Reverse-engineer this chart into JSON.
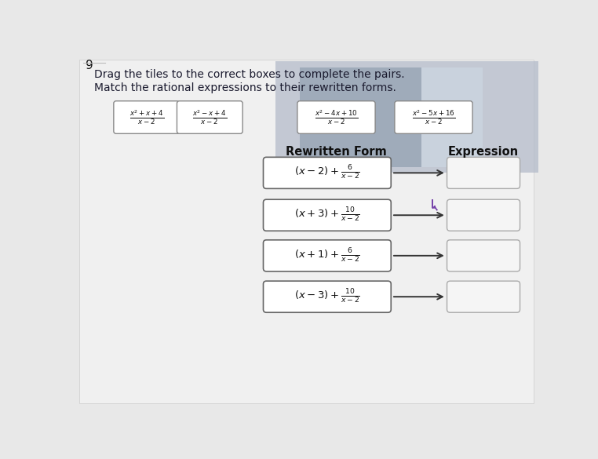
{
  "question_number": "9",
  "instruction1": "Drag the tiles to the correct boxes to complete the pairs.",
  "instruction2": "Match the rational expressions to their rewritten forms.",
  "tile_labels_latex": [
    "$\\frac{x^2+x+4}{x-2}$",
    "$\\frac{x^2-x+4}{x-2}$",
    "$\\frac{x^2-4x+10}{x-2}$",
    "$\\frac{x^2-5x+16}{x-2}$"
  ],
  "rewritten_forms_latex": [
    "$(x-2)+\\frac{6}{x-2}$",
    "$(x+3)+\\frac{10}{x-2}$",
    "$(x+1)+\\frac{6}{x-2}$",
    "$(x-3)+\\frac{10}{x-2}$"
  ],
  "col_label_left": "Rewritten Form",
  "col_label_right": "Expression",
  "bg_color": "#e8e8e8",
  "page_color": "#f0f0f0",
  "tile_bg": "#ffffff",
  "tile_border": "#888888",
  "box_bg": "#f5f5f5",
  "box_border": "#aaaaaa",
  "arrow_color": "#333333",
  "text_color": "#111111",
  "label_color": "#333333",
  "cursor_color": "#7744aa",
  "photo_color": "#b0b8c8",
  "photo_dark": "#8899aa"
}
